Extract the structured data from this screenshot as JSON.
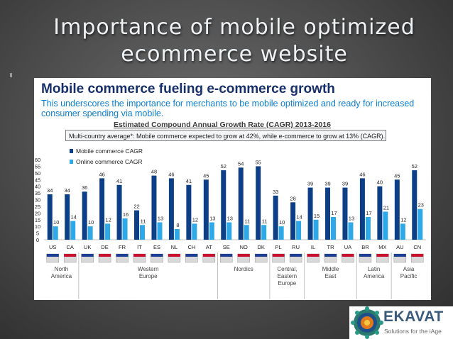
{
  "slide": {
    "title_line1": "Importance of mobile optimized",
    "title_line2": "ecommerce website"
  },
  "panel": {
    "headline": "Mobile commerce fueling e-commerce growth",
    "subtitle": "This underscores the importance for merchants to be mobile optimized and ready for increased consumer spending via mobile.",
    "cagr_title": "Estimated Compound Annual Growth Rate (CAGR) 2013-2016",
    "note": "Multi-country average*: Mobile commerce expected to grow at 42%, while e-commerce to grow at 13% (CAGR)."
  },
  "chart_data": {
    "type": "bar",
    "title": "Estimated Compound Annual Growth Rate (CAGR) 2013-2016",
    "categories": [
      "US",
      "CA",
      "UK",
      "DE",
      "FR",
      "IT",
      "ES",
      "NL",
      "CH",
      "AT",
      "SE",
      "NO",
      "DK",
      "PL",
      "RU",
      "IL",
      "TR",
      "UA",
      "BR",
      "MX",
      "AU",
      "CN"
    ],
    "series": [
      {
        "name": "Mobile commerce CAGR",
        "values": [
          34,
          34,
          36,
          46,
          41,
          22,
          48,
          46,
          41,
          45,
          52,
          54,
          55,
          33,
          28,
          39,
          39,
          39,
          46,
          40,
          45,
          52
        ]
      },
      {
        "name": "Online commerce CAGR",
        "values": [
          10,
          14,
          10,
          12,
          16,
          11,
          13,
          8,
          12,
          13,
          13,
          11,
          11,
          10,
          14,
          15,
          17,
          13,
          17,
          21,
          12,
          23
        ]
      }
    ],
    "ylim": [
      0,
      60
    ],
    "yticks": [
      0,
      5,
      10,
      15,
      20,
      25,
      30,
      35,
      40,
      45,
      50,
      55,
      60
    ],
    "legend_position": "top-left",
    "regions": [
      {
        "label": "North America",
        "start": 0,
        "end": 1
      },
      {
        "label": "Western Europe",
        "start": 2,
        "end": 9
      },
      {
        "label": "Nordics",
        "start": 10,
        "end": 12
      },
      {
        "label": "Central, Eastern Europe",
        "start": 13,
        "end": 14
      },
      {
        "label": "Middle East",
        "start": 15,
        "end": 17
      },
      {
        "label": "Latin America",
        "start": 18,
        "end": 19
      },
      {
        "label": "Asia Pacific",
        "start": 20,
        "end": 21
      }
    ],
    "colors": {
      "mobile": "#0d3f86",
      "online": "#2ea8e6"
    }
  },
  "logo": {
    "name": "EKAVAT",
    "tagline": "Solutions for the iAge",
    "icon": "mandala-icon"
  }
}
